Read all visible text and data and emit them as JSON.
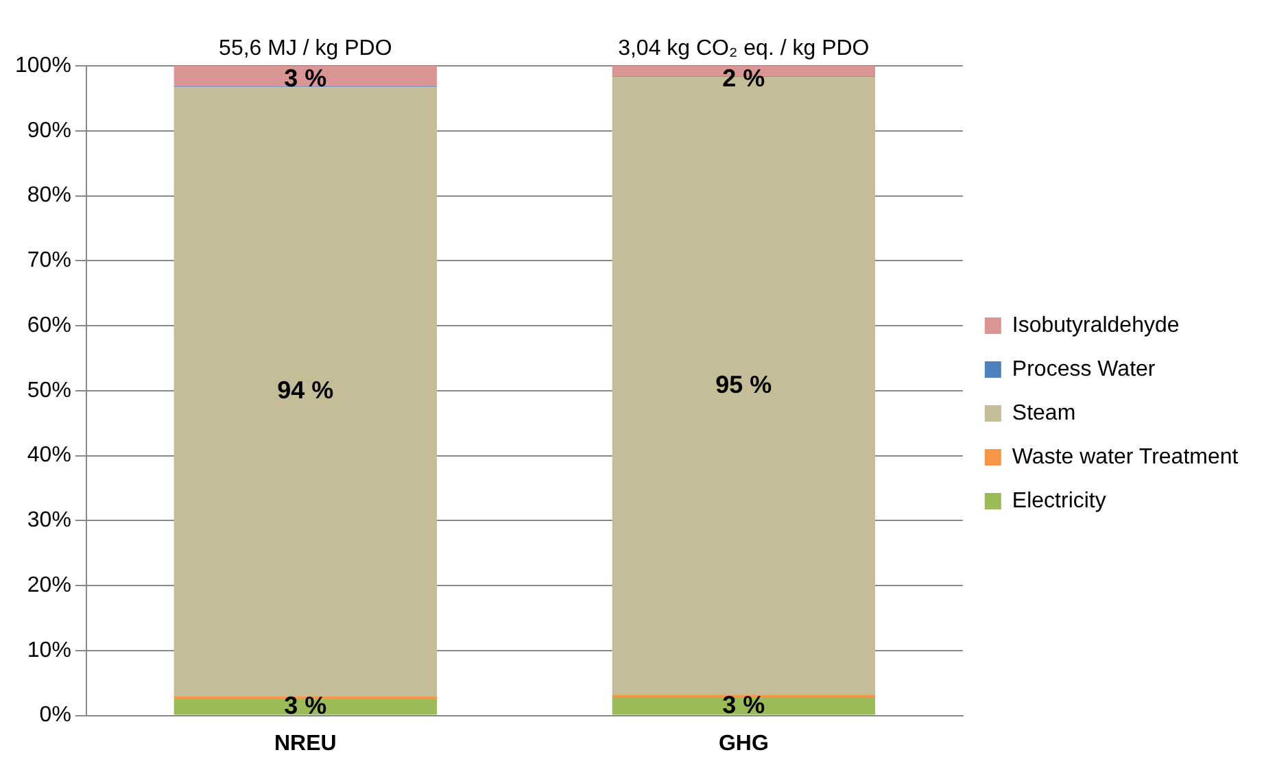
{
  "chart_data": {
    "type": "bar",
    "stacked": true,
    "categories": [
      "NREU",
      "GHG"
    ],
    "series": [
      {
        "name": "Electricity",
        "color": "#9bbb59",
        "values": [
          2.5,
          2.8
        ],
        "value_labels": [
          "3 %",
          "3 %"
        ]
      },
      {
        "name": "Waste water Treatment",
        "color": "#f79646",
        "values": [
          0.5,
          0.4
        ]
      },
      {
        "name": "Steam",
        "color": "#c4bd97",
        "values": [
          93.7,
          95.1
        ],
        "value_labels": [
          "94 %",
          "95 %"
        ]
      },
      {
        "name": "Process Water",
        "color": "#4f81bd",
        "values": [
          0.1,
          0.1
        ]
      },
      {
        "name": "Isobutyraldehyde",
        "color": "#d99694",
        "values": [
          3.2,
          1.6
        ],
        "value_labels": [
          "3 %",
          "2 %"
        ]
      }
    ],
    "annotations": [
      {
        "text": "55,6 MJ / kg PDO",
        "x": "NREU",
        "y": 100
      },
      {
        "text": "3,04 kg CO₂ eq. / kg PDO",
        "x": "GHG",
        "y": 100
      }
    ],
    "ylim": [
      0,
      100
    ],
    "yticks": [
      {
        "value": 0,
        "label": "0%"
      },
      {
        "value": 10,
        "label": "10%"
      },
      {
        "value": 20,
        "label": "20%"
      },
      {
        "value": 30,
        "label": "30%"
      },
      {
        "value": 40,
        "label": "40%"
      },
      {
        "value": 50,
        "label": "50%"
      },
      {
        "value": 60,
        "label": "60%"
      },
      {
        "value": 70,
        "label": "70%"
      },
      {
        "value": 80,
        "label": "80%"
      },
      {
        "value": 90,
        "label": "90%"
      },
      {
        "value": 100,
        "label": "100%"
      }
    ],
    "grid": "y",
    "legend": "right"
  }
}
